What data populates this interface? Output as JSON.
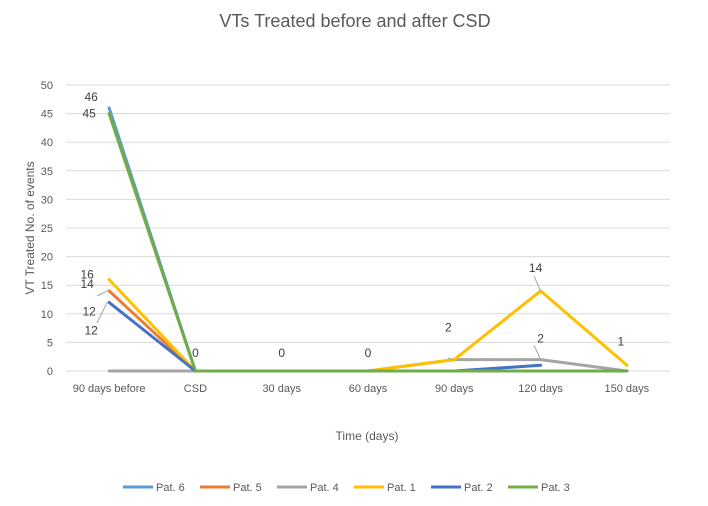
{
  "chart_data": {
    "type": "line",
    "title": "VTs Treated before and after CSD",
    "xlabel": "Time (days)",
    "ylabel": "VT Treated No. of events",
    "ylim": [
      0,
      50
    ],
    "yticks": [
      0,
      5,
      10,
      15,
      20,
      25,
      30,
      35,
      40,
      45,
      50
    ],
    "grid": true,
    "legend_position": "bottom",
    "categories": [
      "90 days before",
      "CSD",
      "30 days",
      "60 days",
      "90 days",
      "120 days",
      "150 days"
    ],
    "series": [
      {
        "name": "Pat. 6",
        "color": "#5b9bd5",
        "values": [
          46,
          0,
          0,
          0,
          0,
          0,
          0
        ]
      },
      {
        "name": "Pat. 5",
        "color": "#ed7d31",
        "values": [
          14,
          0,
          0,
          0,
          0,
          0,
          0
        ]
      },
      {
        "name": "Pat. 4",
        "color": "#a5a5a5",
        "values": [
          0,
          0,
          0,
          0,
          2,
          2,
          0
        ]
      },
      {
        "name": "Pat. 1",
        "color": "#ffc000",
        "values": [
          16,
          0,
          0,
          0,
          2,
          14,
          1
        ]
      },
      {
        "name": "Pat. 2",
        "color": "#4472c4",
        "values": [
          12,
          0,
          0,
          0,
          0,
          1,
          null
        ]
      },
      {
        "name": "Pat. 3",
        "color": "#70ad47",
        "values": [
          45,
          0,
          0,
          0,
          0,
          0,
          0
        ]
      }
    ],
    "data_labels": [
      {
        "text": "46",
        "category": 0,
        "value": 46,
        "series": "Pat. 6"
      },
      {
        "text": "45",
        "category": 0,
        "value": 45,
        "series": "Pat. 3"
      },
      {
        "text": "16",
        "category": 0,
        "value": 16,
        "series": "Pat. 1"
      },
      {
        "text": "14",
        "category": 0,
        "value": 14,
        "series": "Pat. 5"
      },
      {
        "text": "12",
        "category": 0,
        "value": 12,
        "series": "Pat. 2"
      },
      {
        "text": "12",
        "category": 0,
        "value": 12,
        "series": "Pat. 2"
      },
      {
        "text": "0",
        "category": 1,
        "value": 0,
        "series": "Pat. 3"
      },
      {
        "text": "0",
        "category": 2,
        "value": 0,
        "series": "Pat. 3"
      },
      {
        "text": "0",
        "category": 3,
        "value": 0,
        "series": "Pat. 3"
      },
      {
        "text": "2",
        "category": 4,
        "value": 2,
        "series": "Pat. 1"
      },
      {
        "text": "14",
        "category": 5,
        "value": 14,
        "series": "Pat. 1"
      },
      {
        "text": "2",
        "category": 5,
        "value": 2,
        "series": "Pat. 4"
      },
      {
        "text": "1",
        "category": 6,
        "value": 1,
        "series": "Pat. 1"
      }
    ]
  }
}
